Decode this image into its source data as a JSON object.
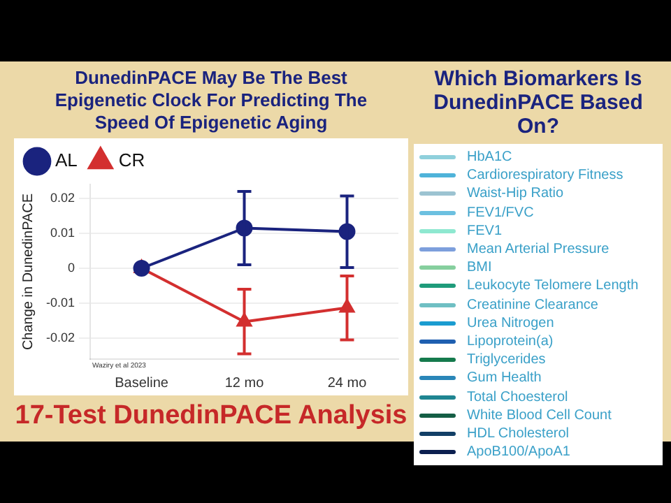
{
  "chart_data": [
    {
      "type": "line",
      "title": "DunedinPACE May Be The Best Epigenetic Clock For Predicting The Speed Of Epigenetic Aging",
      "ylabel": "Change in DunedinPACE",
      "categories": [
        "Baseline",
        "12 mo",
        "24 mo"
      ],
      "series": [
        {
          "name": "AL",
          "color": "#1a237e",
          "marker": "circle",
          "values": [
            0,
            0.0115,
            0.0105
          ],
          "errors": [
            null,
            [
              0.001,
              0.022
            ],
            [
              0.0002,
              0.0207
            ]
          ]
        },
        {
          "name": "CR",
          "color": "#d32f2f",
          "marker": "triangle",
          "values": [
            0,
            -0.0153,
            -0.0113
          ],
          "errors": [
            null,
            [
              -0.0245,
              -0.006
            ],
            [
              -0.0205,
              -0.0022
            ]
          ]
        }
      ],
      "ylim": [
        -0.026,
        0.024
      ],
      "yticks": [
        -0.02,
        -0.01,
        0,
        0.01,
        0.02
      ],
      "grid": "y",
      "legend": "top left",
      "annotations": [
        "Waziry et al 2023",
        "17-Test DunedinPACE Analysis"
      ]
    },
    {
      "type": "other",
      "title": "Which Biomarkers Is DunedinPACE Based On?",
      "categories": [
        "HbA1C",
        "Cardiorespiratory Fitness",
        "Waist-Hip Ratio",
        "FEV1/FVC",
        "FEV1",
        "Mean Arterial Pressure",
        "BMI",
        "Leukocyte Telomere Length",
        "Creatinine Clearance",
        "Urea Nitrogen",
        "Lipoprotein(a)",
        "Triglycerides",
        "Gum Health",
        "Total Choesterol",
        "White Blood Cell Count",
        "HDL Cholesterol",
        "ApoB100/ApoA1"
      ],
      "colors": [
        "#8fd0dc",
        "#4fb3d9",
        "#9cc3d1",
        "#6cc0e0",
        "#8ee8d0",
        "#7d9fdc",
        "#86cf9e",
        "#1f9b7a",
        "#6fbfc3",
        "#1a9cd0",
        "#1f5fb0",
        "#157a4d",
        "#2a86b8",
        "#1f8591",
        "#155e45",
        "#123f66",
        "#0b1f4f"
      ]
    }
  ]
}
